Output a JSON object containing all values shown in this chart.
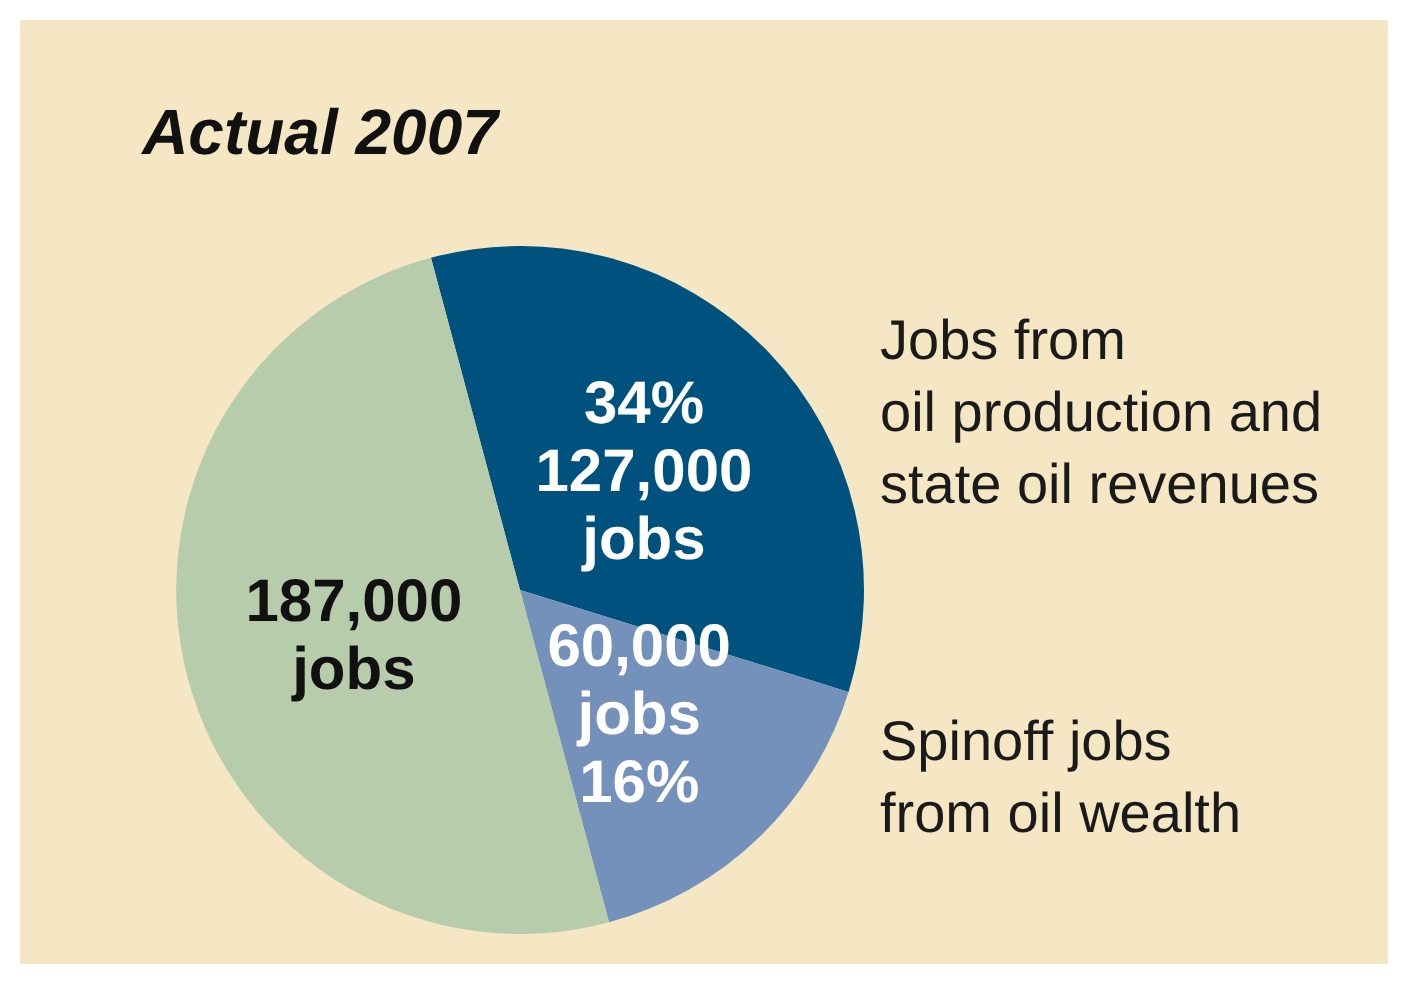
{
  "chart_data": {
    "type": "pie",
    "title": "Actual 2007",
    "categories": [
      "Jobs from\noil production and\nstate oil revenues",
      "Spinoff jobs\nfrom oil wealth",
      null
    ],
    "values": [
      127000,
      60000,
      187000
    ],
    "colors": [
      "#00527e",
      "#7391ba",
      "#b6ccaa"
    ],
    "value_labels": [
      "34%\n127,000\njobs",
      "60,000\njobs\n16%",
      "187,000\njobs"
    ]
  }
}
